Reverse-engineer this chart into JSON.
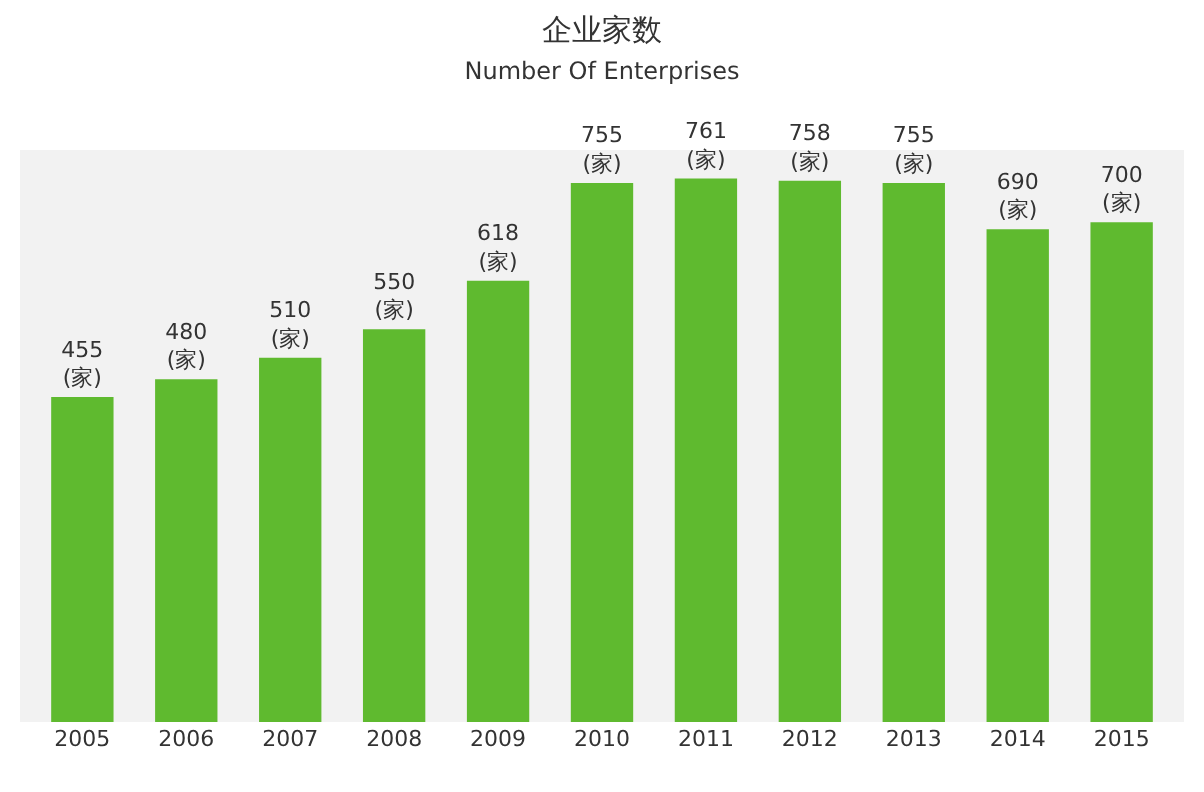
{
  "chart_data": {
    "type": "bar",
    "title": "企业家数",
    "subtitle": "Number Of Enterprises",
    "categories": [
      "2005",
      "2006",
      "2007",
      "2008",
      "2009",
      "2010",
      "2011",
      "2012",
      "2013",
      "2014",
      "2015"
    ],
    "values": [
      455,
      480,
      510,
      550,
      618,
      755,
      761,
      758,
      755,
      690,
      700
    ],
    "value_labels": [
      "455\n(家)",
      "480\n(家)",
      "510\n(家)",
      "550\n(家)",
      "618\n(家)",
      "755\n(家)",
      "761\n(家)",
      "758\n(家)",
      "755\n(家)",
      "690\n(家)",
      "700\n(家)"
    ],
    "color": "#5fba2f",
    "grid": false
  }
}
